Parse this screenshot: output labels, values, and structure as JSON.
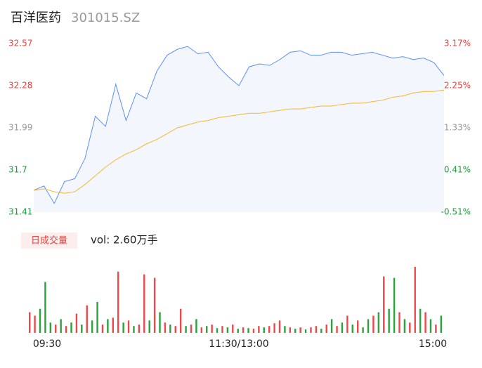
{
  "chart_data": [
    {
      "type": "line",
      "title": "百洋医药",
      "subtitle": "301015.SZ",
      "series": [
        {
          "color": "#5b8ff9",
          "values": [
            31.56,
            31.59,
            31.47,
            31.62,
            31.64,
            31.78,
            32.07,
            32.0,
            32.29,
            32.04,
            32.23,
            32.19,
            32.38,
            32.49,
            32.53,
            32.55,
            32.5,
            32.51,
            32.41,
            32.34,
            32.28,
            32.41,
            32.43,
            32.42,
            32.46,
            32.51,
            32.52,
            32.49,
            32.49,
            32.51,
            32.51,
            32.49,
            32.5,
            32.51,
            32.49,
            32.47,
            32.48,
            32.46,
            32.47,
            32.44,
            32.35
          ]
        },
        {
          "color": "#f5b82e",
          "values": [
            31.56,
            31.57,
            31.55,
            31.54,
            31.55,
            31.6,
            31.66,
            31.72,
            31.77,
            31.81,
            31.84,
            31.88,
            31.91,
            31.95,
            31.99,
            32.01,
            32.03,
            32.04,
            32.06,
            32.07,
            32.08,
            32.09,
            32.09,
            32.1,
            32.11,
            32.12,
            32.12,
            32.13,
            32.14,
            32.14,
            32.15,
            32.16,
            32.16,
            32.17,
            32.18,
            32.2,
            32.21,
            32.23,
            32.24,
            32.24,
            32.25
          ]
        }
      ],
      "ylim": [
        31.41,
        32.57
      ],
      "yticks": [
        32.57,
        32.28,
        31.99,
        31.7,
        31.41
      ],
      "ytick_colors": [
        "#e8413e",
        "#e8413e",
        "#999999",
        "#1a9c3a",
        "#1a9c3a"
      ],
      "y2lim": [
        -0.51,
        3.17
      ],
      "y2ticks": [
        {
          "value": 3.17,
          "label": "3.17%"
        },
        {
          "value": 2.25,
          "label": "2.25%"
        },
        {
          "value": 1.33,
          "label": "1.33%"
        },
        {
          "value": 0.41,
          "label": "0.41%"
        },
        {
          "value": -0.51,
          "label": "-0.51%"
        }
      ]
    },
    {
      "type": "bar",
      "label": "日成交量",
      "annotation": "vol: 2.60万手",
      "ylim": [
        0,
        100
      ],
      "values": [
        30,
        25,
        35,
        74,
        15,
        12,
        20,
        10,
        15,
        28,
        12,
        40,
        18,
        45,
        12,
        20,
        22,
        89,
        15,
        18,
        10,
        12,
        85,
        18,
        80,
        30,
        15,
        12,
        10,
        35,
        10,
        12,
        20,
        8,
        10,
        12,
        7,
        10,
        8,
        12,
        6,
        8,
        7,
        6,
        10,
        8,
        10,
        14,
        18,
        10,
        8,
        6,
        8,
        5,
        8,
        10,
        6,
        12,
        20,
        10,
        15,
        25,
        12,
        18,
        8,
        20,
        25,
        30,
        82,
        35,
        80,
        30,
        20,
        15,
        96,
        35,
        30,
        20,
        12,
        25
      ],
      "colors": [
        "#f04848",
        "#f04848",
        "#2aa33b",
        "#2aa33b",
        "#2aa33b",
        "#f04848",
        "#2aa33b",
        "#f04848",
        "#2aa33b",
        "#f04848",
        "#2aa33b",
        "#f04848",
        "#2aa33b",
        "#2aa33b",
        "#f04848",
        "#2aa33b",
        "#f04848",
        "#f04848",
        "#2aa33b",
        "#f04848",
        "#2aa33b",
        "#f04848",
        "#f04848",
        "#2aa33b",
        "#f04848",
        "#2aa33b",
        "#f04848",
        "#2aa33b",
        "#f04848",
        "#f04848",
        "#2aa33b",
        "#f04848",
        "#2aa33b",
        "#f04848",
        "#2aa33b",
        "#f04848",
        "#2aa33b",
        "#f04848",
        "#2aa33b",
        "#f04848",
        "#2aa33b",
        "#f04848",
        "#2aa33b",
        "#f04848",
        "#f04848",
        "#2aa33b",
        "#f04848",
        "#f04848",
        "#f04848",
        "#2aa33b",
        "#f04848",
        "#2aa33b",
        "#f04848",
        "#2aa33b",
        "#f04848",
        "#f04848",
        "#2aa33b",
        "#f04848",
        "#2aa33b",
        "#f04848",
        "#2aa33b",
        "#f04848",
        "#2aa33b",
        "#f04848",
        "#2aa33b",
        "#2aa33b",
        "#f04848",
        "#2aa33b",
        "#f04848",
        "#2aa33b",
        "#2aa33b",
        "#f04848",
        "#2aa33b",
        "#f04848",
        "#f04848",
        "#2aa33b",
        "#f04848",
        "#2aa33b",
        "#f04848",
        "#2aa33b"
      ],
      "xtick_labels": [
        "09:30",
        "11:30/13:00",
        "15:00"
      ]
    }
  ]
}
